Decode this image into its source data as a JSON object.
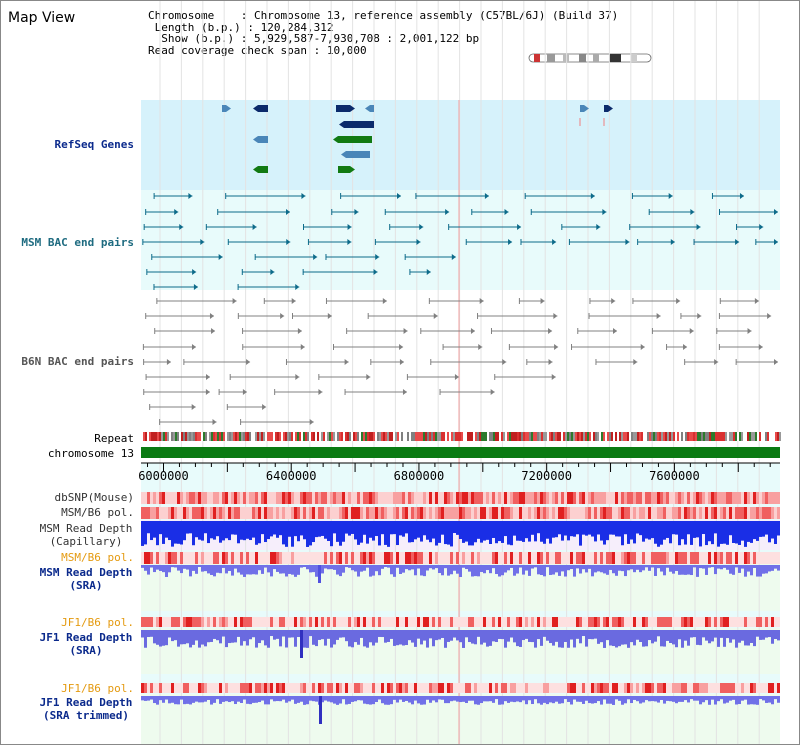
{
  "title": "Map View",
  "info": {
    "chromosome_label": "Chromosome",
    "chromosome_value": "Chromosome 13, reference assembly (C57BL/6J) (Build 37)",
    "length_label": "Length (b.p.)",
    "length_value": "120,284,312",
    "show_label": "Show (b.p.)",
    "show_value": "5,929,587-7,930,708 : 2,001,122 bp",
    "coverage_label": "Read coverage check span",
    "coverage_value": "10,000"
  },
  "tracks": {
    "refseq": "RefSeq Genes",
    "msm_bac": "MSM BAC end pairs",
    "b6n_bac": "B6N BAC end pairs",
    "repeat": "Repeat",
    "chromosome": "chromosome 13",
    "dbsnp": "dbSNP(Mouse)",
    "msm_b6_pol_1": "MSM/B6 pol.",
    "msm_read_depth_cap_1": "MSM Read Depth",
    "msm_read_depth_cap_2": "(Capillary)",
    "msm_b6_pol_2": "MSM/B6 pol.",
    "msm_read_depth_sra_1": "MSM Read Depth",
    "msm_read_depth_sra_2": "(SRA)",
    "jf1_b6_pol_1": "JF1/B6 pol.",
    "jf1_read_depth_1": "JF1 Read Depth",
    "jf1_read_depth_2": "(SRA)",
    "jf1_b6_pol_2": "JF1/B6 pol.",
    "jf1_trim_1": "JF1 Read Depth",
    "jf1_trim_2": "(SRA trimmed)"
  },
  "axis": {
    "ticks": [
      "6000000",
      "6400000",
      "6800000",
      "7200000",
      "7600000"
    ],
    "tick_values": [
      6000000,
      6400000,
      6800000,
      7200000,
      7600000
    ],
    "range": [
      5929587,
      7930708
    ]
  },
  "colors": {
    "refseq_bg": "#d6f2fb",
    "bac_bg": "#e8fbfb",
    "msm_bac": "#0d6b8a",
    "b6n_bac": "#808080",
    "label_blue": "#0b2a8c",
    "label_teal": "#1e6b80",
    "label_orange": "#e49a10",
    "chromosome_green": "#0a7a12",
    "depth_blue": "#2a2ae0",
    "pol_red": "#e62b2b"
  }
}
